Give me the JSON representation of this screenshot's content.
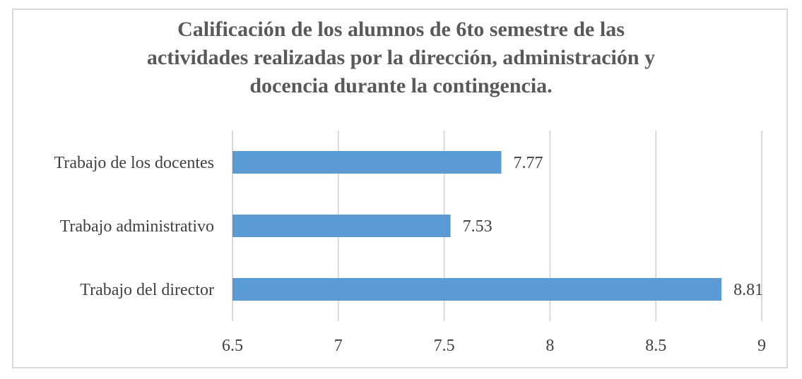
{
  "chart_data": {
    "type": "bar",
    "orientation": "horizontal",
    "title_lines": [
      "Calificación de los alumnos de 6to semestre  de las",
      "actividades realizadas por la dirección, administración y",
      "docencia durante la contingencia."
    ],
    "categories": [
      "Trabajo de los docentes",
      "Trabajo administrativo",
      "Trabajo del director"
    ],
    "values": [
      7.77,
      7.53,
      8.81
    ],
    "data_labels": [
      "7.77",
      "7.53",
      "8.81"
    ],
    "xlim": [
      6.5,
      9
    ],
    "x_ticks": [
      6.5,
      7,
      7.5,
      8,
      8.5,
      9
    ],
    "x_tick_labels": [
      "6.5",
      "7",
      "7.5",
      "8",
      "8.5",
      "9"
    ],
    "grid": true,
    "legend": "none",
    "bar_color": "#5b9bd5",
    "grid_color": "#d9d9d9",
    "text_color": "#404040",
    "title_color": "#595959"
  }
}
